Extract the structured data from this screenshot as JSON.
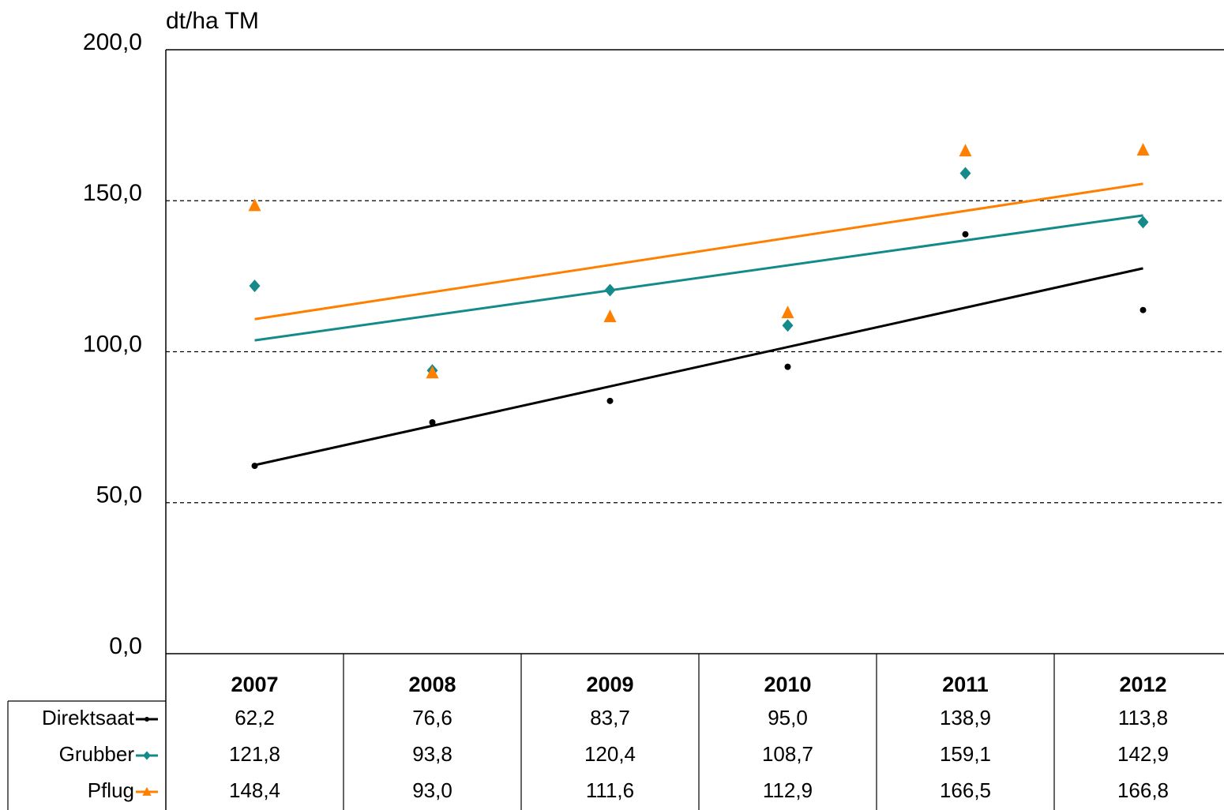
{
  "chart_data": {
    "type": "scatter",
    "y_label": "dt/ha TM",
    "categories": [
      "2007",
      "2008",
      "2009",
      "2010",
      "2011",
      "2012"
    ],
    "ylim": [
      0,
      200
    ],
    "yticks": [
      {
        "value": 0,
        "label": "0,0"
      },
      {
        "value": 50,
        "label": "50,0"
      },
      {
        "value": 100,
        "label": "100,0"
      },
      {
        "value": 150,
        "label": "150,0"
      },
      {
        "value": 200,
        "label": "200,0"
      }
    ],
    "grid": true,
    "trendline": "linear",
    "data_table": true,
    "series": [
      {
        "name": "Direktsaat",
        "color": "#000000",
        "marker": "circle",
        "values": [
          62.2,
          76.6,
          83.7,
          95.0,
          138.9,
          113.8
        ],
        "value_labels": [
          "62,2",
          "76,6",
          "83,7",
          "95,0",
          "138,9",
          "113,8"
        ]
      },
      {
        "name": "Grubber",
        "color": "#148a8a",
        "marker": "diamond",
        "values": [
          121.8,
          93.8,
          120.4,
          108.7,
          159.1,
          142.9
        ],
        "value_labels": [
          "121,8",
          "93,8",
          "120,4",
          "108,7",
          "159,1",
          "142,9"
        ]
      },
      {
        "name": "Pflug",
        "color": "#ff8000",
        "marker": "triangle",
        "values": [
          148.4,
          93.0,
          111.6,
          112.9,
          166.5,
          166.8
        ],
        "value_labels": [
          "148,4",
          "93,0",
          "111,6",
          "112,9",
          "166,5",
          "166,8"
        ]
      }
    ]
  }
}
